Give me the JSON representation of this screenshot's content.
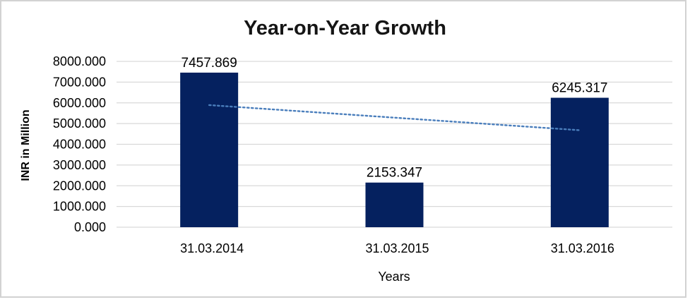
{
  "frame": {
    "background": "#ffffff",
    "border_color": "#d2d2d2"
  },
  "chart_data": {
    "type": "bar",
    "title": "Year-on-Year Growth",
    "categories": [
      "31.03.2014",
      "31.03.2015",
      "31.03.2016"
    ],
    "values": [
      7457.869,
      2153.347,
      6245.317
    ],
    "bar_labels": [
      "7457.869",
      "2153.347",
      "6245.317"
    ],
    "xlabel": "Years",
    "ylabel": "INR in Million",
    "ylim": [
      0,
      8000
    ],
    "yticks": [
      0,
      1000,
      2000,
      3000,
      4000,
      5000,
      6000,
      7000,
      8000
    ],
    "ytick_labels": [
      "0.000",
      "1000.000",
      "2000.000",
      "3000.000",
      "4000.000",
      "5000.000",
      "6000.000",
      "7000.000",
      "8000.000"
    ],
    "grid": true,
    "grid_color": "#d9d9d9",
    "legend": "none",
    "bar_color": "#05215f",
    "label_color": "#000000",
    "trendline": {
      "type": "linear",
      "style": "dotted",
      "color": "#4a7ebc",
      "start_value": 5891.8,
      "end_value": 4679.2
    }
  }
}
